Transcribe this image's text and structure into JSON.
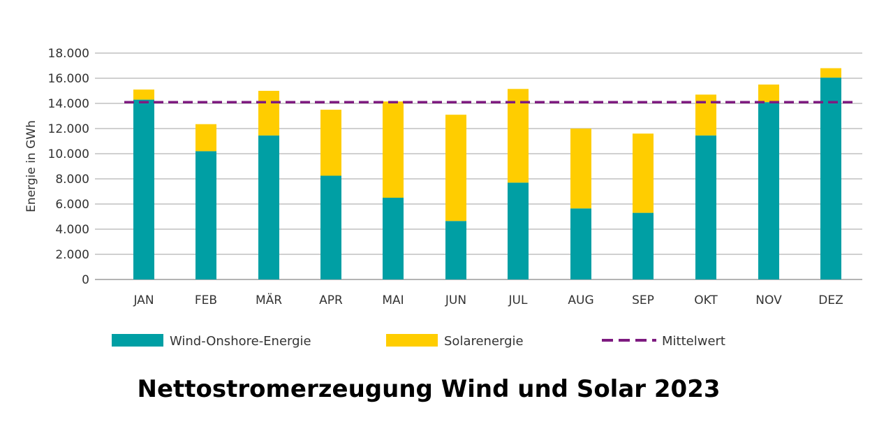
{
  "chart_data": {
    "type": "bar",
    "stacked": true,
    "title": "Nettostromerzeugung Wind und Solar 2023",
    "xlabel": "",
    "ylabel": "Energie in GWh",
    "ylim": [
      0,
      18000
    ],
    "yticks": [
      0,
      2000,
      4000,
      6000,
      8000,
      10000,
      12000,
      14000,
      16000,
      18000
    ],
    "ytick_labels": [
      "0",
      "2.000",
      "4.000",
      "6.000",
      "8.000",
      "10.000",
      "12.000",
      "14.000",
      "16.000",
      "18.000"
    ],
    "grid": true,
    "legend_position": "bottom",
    "categories": [
      "JAN",
      "FEB",
      "MÄR",
      "APR",
      "MAI",
      "JUN",
      "JUL",
      "AUG",
      "SEP",
      "OKT",
      "NOV",
      "DEZ"
    ],
    "series": [
      {
        "name": "Wind-Onshore-Energie",
        "color": "#009FA4",
        "values": [
          14300,
          10200,
          11450,
          8250,
          6500,
          4650,
          7700,
          5650,
          5300,
          11450,
          14100,
          16050
        ]
      },
      {
        "name": "Solarenergie",
        "color": "#FFCD00",
        "values": [
          800,
          2150,
          3550,
          5250,
          7650,
          8450,
          7450,
          6350,
          6300,
          3250,
          1400,
          750
        ]
      }
    ],
    "reference_line": {
      "name": "Mittelwert",
      "value": 14100,
      "color": "#7E1B80",
      "style": "dashed"
    }
  }
}
